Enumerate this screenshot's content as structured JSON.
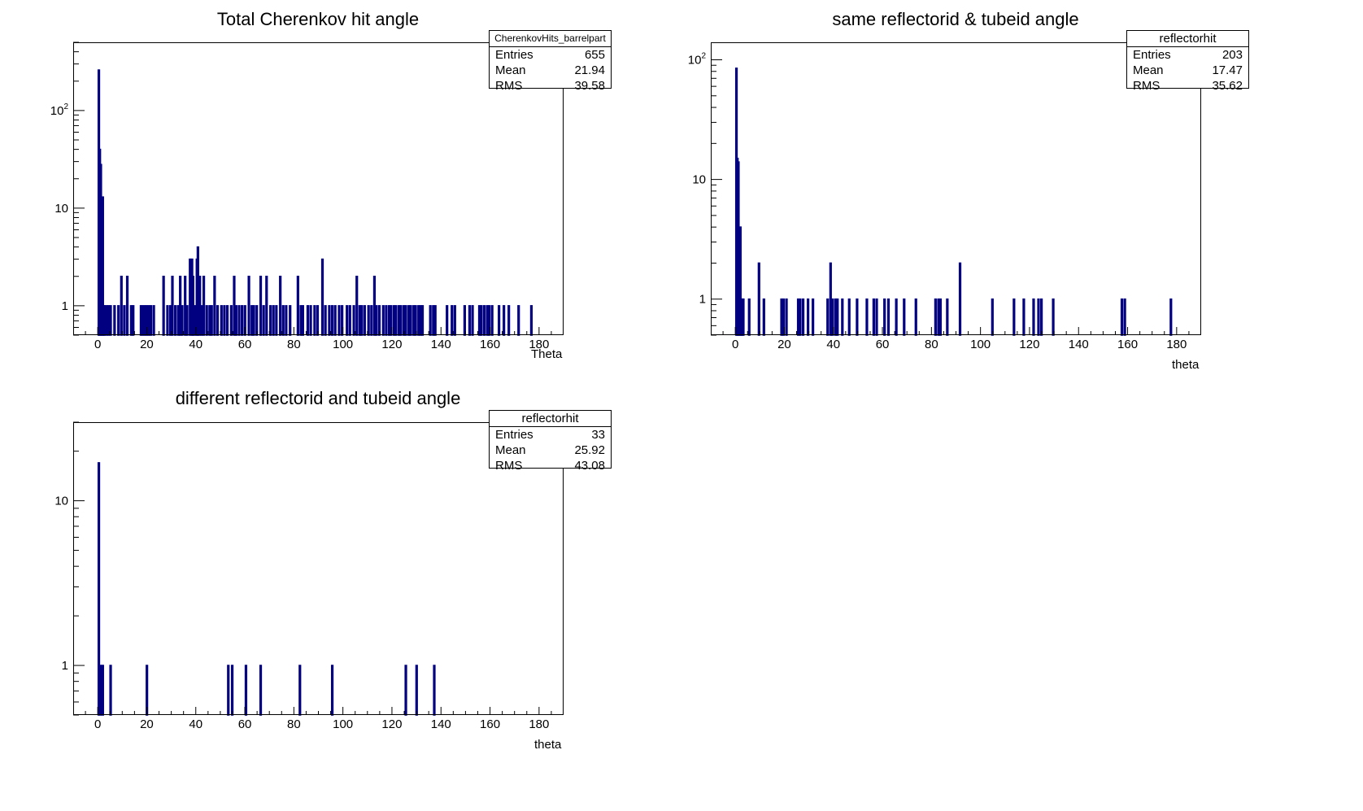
{
  "chart_data": [
    {
      "type": "bar",
      "title": "Total Cherenkov hit angle",
      "xlabel": "Theta",
      "ylabel": "",
      "xlim": [
        -10,
        190
      ],
      "ylim": [
        0.5,
        500
      ],
      "yscale": "log",
      "line_color": "#000080",
      "x_ticks": [
        "0",
        "20",
        "40",
        "60",
        "80",
        "100",
        "120",
        "140",
        "160",
        "180"
      ],
      "y_ticks": [
        "1",
        "10",
        "10^2"
      ],
      "stats": {
        "name": "CherenkovHits_barrelpart",
        "entries": "655",
        "mean": "21.94",
        "rms": "39.58"
      },
      "bins": [
        [
          0.2,
          260
        ],
        [
          0.6,
          40
        ],
        [
          1.0,
          28
        ],
        [
          1.4,
          7
        ],
        [
          1.8,
          13
        ],
        [
          2.2,
          1
        ],
        [
          2.6,
          1
        ],
        [
          3.4,
          1
        ],
        [
          4.2,
          1
        ],
        [
          5.0,
          1
        ],
        [
          6.6,
          1
        ],
        [
          8.2,
          1
        ],
        [
          9.4,
          2
        ],
        [
          10.6,
          1
        ],
        [
          11.8,
          2
        ],
        [
          13.4,
          1
        ],
        [
          14.2,
          1
        ],
        [
          17.4,
          1
        ],
        [
          18.2,
          1
        ],
        [
          19.0,
          1
        ],
        [
          19.8,
          1
        ],
        [
          20.6,
          1
        ],
        [
          21.4,
          1
        ],
        [
          22.6,
          1
        ],
        [
          26.6,
          2
        ],
        [
          28.2,
          1
        ],
        [
          29.4,
          1
        ],
        [
          30.2,
          2
        ],
        [
          31.4,
          1
        ],
        [
          32.6,
          1
        ],
        [
          33.4,
          2
        ],
        [
          34.2,
          1
        ],
        [
          35.4,
          2
        ],
        [
          36.2,
          1
        ],
        [
          37.4,
          3
        ],
        [
          38.2,
          3
        ],
        [
          38.6,
          2
        ],
        [
          39.4,
          1
        ],
        [
          40.2,
          3
        ],
        [
          40.6,
          4
        ],
        [
          41.4,
          2
        ],
        [
          42.2,
          1
        ],
        [
          43.0,
          2
        ],
        [
          44.2,
          1
        ],
        [
          45.4,
          1
        ],
        [
          46.2,
          1
        ],
        [
          47.4,
          2
        ],
        [
          48.6,
          1
        ],
        [
          50.2,
          1
        ],
        [
          51.4,
          1
        ],
        [
          52.6,
          1
        ],
        [
          54.2,
          1
        ],
        [
          55.4,
          2
        ],
        [
          56.2,
          1
        ],
        [
          57.4,
          1
        ],
        [
          58.6,
          1
        ],
        [
          59.8,
          1
        ],
        [
          61.4,
          2
        ],
        [
          62.6,
          1
        ],
        [
          63.4,
          1
        ],
        [
          64.6,
          1
        ],
        [
          66.2,
          2
        ],
        [
          67.4,
          1
        ],
        [
          68.6,
          2
        ],
        [
          70.2,
          1
        ],
        [
          71.4,
          1
        ],
        [
          72.6,
          1
        ],
        [
          74.2,
          2
        ],
        [
          75.4,
          1
        ],
        [
          76.6,
          1
        ],
        [
          78.2,
          1
        ],
        [
          81.4,
          2
        ],
        [
          82.6,
          1
        ],
        [
          83.4,
          1
        ],
        [
          85.4,
          1
        ],
        [
          86.6,
          1
        ],
        [
          88.2,
          1
        ],
        [
          89.4,
          1
        ],
        [
          91.4,
          3
        ],
        [
          92.6,
          1
        ],
        [
          94.2,
          1
        ],
        [
          95.4,
          1
        ],
        [
          96.6,
          1
        ],
        [
          98.2,
          1
        ],
        [
          99.4,
          1
        ],
        [
          101.4,
          1
        ],
        [
          102.6,
          1
        ],
        [
          104.2,
          1
        ],
        [
          105.4,
          2
        ],
        [
          106.6,
          1
        ],
        [
          107.4,
          1
        ],
        [
          108.6,
          1
        ],
        [
          110.2,
          1
        ],
        [
          111.4,
          1
        ],
        [
          112.6,
          2
        ],
        [
          113.4,
          1
        ],
        [
          114.6,
          1
        ],
        [
          116.2,
          1
        ],
        [
          117.4,
          1
        ],
        [
          118.6,
          1
        ],
        [
          119.4,
          1
        ],
        [
          120.6,
          1
        ],
        [
          121.4,
          1
        ],
        [
          122.6,
          1
        ],
        [
          123.4,
          1
        ],
        [
          124.6,
          1
        ],
        [
          125.4,
          1
        ],
        [
          126.6,
          1
        ],
        [
          127.4,
          1
        ],
        [
          128.6,
          1
        ],
        [
          129.4,
          1
        ],
        [
          130.6,
          1
        ],
        [
          131.4,
          1
        ],
        [
          132.2,
          1
        ],
        [
          135.4,
          1
        ],
        [
          136.6,
          1
        ],
        [
          137.4,
          1
        ],
        [
          142.2,
          1
        ],
        [
          144.2,
          1
        ],
        [
          145.4,
          1
        ],
        [
          149.4,
          1
        ],
        [
          151.4,
          1
        ],
        [
          152.6,
          1
        ],
        [
          155.4,
          1
        ],
        [
          156.2,
          1
        ],
        [
          157.4,
          1
        ],
        [
          158.6,
          1
        ],
        [
          159.4,
          1
        ],
        [
          160.6,
          1
        ],
        [
          163.4,
          1
        ],
        [
          165.4,
          1
        ],
        [
          167.4,
          1
        ],
        [
          171.4,
          1
        ],
        [
          176.6,
          1
        ]
      ]
    },
    {
      "type": "bar",
      "title": "same reflectorid & tubeid angle",
      "xlabel": "theta",
      "ylabel": "",
      "xlim": [
        -10,
        190
      ],
      "ylim": [
        0.5,
        140
      ],
      "yscale": "log",
      "line_color": "#000080",
      "x_ticks": [
        "0",
        "20",
        "40",
        "60",
        "80",
        "100",
        "120",
        "140",
        "160",
        "180"
      ],
      "y_ticks": [
        "1",
        "10",
        "10^2"
      ],
      "stats": {
        "name": "reflectorhit",
        "entries": "203",
        "mean": "17.47",
        "rms": "35.62"
      },
      "bins": [
        [
          0.2,
          85
        ],
        [
          0.6,
          15
        ],
        [
          1.0,
          14
        ],
        [
          1.4,
          2
        ],
        [
          1.8,
          4
        ],
        [
          2.2,
          1
        ],
        [
          2.6,
          1
        ],
        [
          3.0,
          1
        ],
        [
          5.4,
          1
        ],
        [
          9.4,
          2
        ],
        [
          11.4,
          1
        ],
        [
          18.6,
          1
        ],
        [
          19.4,
          1
        ],
        [
          20.6,
          1
        ],
        [
          25.4,
          1
        ],
        [
          26.2,
          1
        ],
        [
          27.4,
          1
        ],
        [
          29.4,
          1
        ],
        [
          31.4,
          1
        ],
        [
          37.4,
          1
        ],
        [
          38.6,
          2
        ],
        [
          39.4,
          1
        ],
        [
          40.6,
          1
        ],
        [
          41.4,
          1
        ],
        [
          43.4,
          1
        ],
        [
          46.2,
          1
        ],
        [
          49.4,
          1
        ],
        [
          53.4,
          1
        ],
        [
          56.2,
          1
        ],
        [
          57.4,
          1
        ],
        [
          60.6,
          1
        ],
        [
          62.2,
          1
        ],
        [
          65.4,
          1
        ],
        [
          68.6,
          1
        ],
        [
          73.4,
          1
        ],
        [
          81.4,
          1
        ],
        [
          82.6,
          1
        ],
        [
          83.4,
          1
        ],
        [
          86.2,
          1
        ],
        [
          91.4,
          2
        ],
        [
          104.6,
          1
        ],
        [
          113.4,
          1
        ],
        [
          117.4,
          1
        ],
        [
          121.4,
          1
        ],
        [
          123.4,
          1
        ],
        [
          124.6,
          1
        ],
        [
          129.4,
          1
        ],
        [
          157.4,
          1
        ],
        [
          158.6,
          1
        ],
        [
          177.4,
          1
        ]
      ]
    },
    {
      "type": "bar",
      "title": "different reflectorid and tubeid angle",
      "xlabel": "theta",
      "ylabel": "",
      "xlim": [
        -10,
        190
      ],
      "ylim": [
        0.5,
        30
      ],
      "yscale": "log",
      "line_color": "#000080",
      "x_ticks": [
        "0",
        "20",
        "40",
        "60",
        "80",
        "100",
        "120",
        "140",
        "160",
        "180"
      ],
      "y_ticks": [
        "1",
        "10"
      ],
      "stats": {
        "name": "reflectorhit",
        "entries": "33",
        "mean": "25.92",
        "rms": "43.08"
      },
      "bins": [
        [
          0.2,
          17
        ],
        [
          1.0,
          1
        ],
        [
          1.8,
          1
        ],
        [
          5.0,
          1
        ],
        [
          19.8,
          1
        ],
        [
          53.0,
          1
        ],
        [
          54.6,
          1
        ],
        [
          60.2,
          1
        ],
        [
          66.2,
          1
        ],
        [
          82.2,
          1
        ],
        [
          95.4,
          1
        ],
        [
          125.4,
          1
        ],
        [
          129.8,
          1
        ],
        [
          137.0,
          1
        ]
      ]
    }
  ],
  "stat_labels": {
    "entries": "Entries",
    "mean": "Mean",
    "rms": "RMS"
  }
}
